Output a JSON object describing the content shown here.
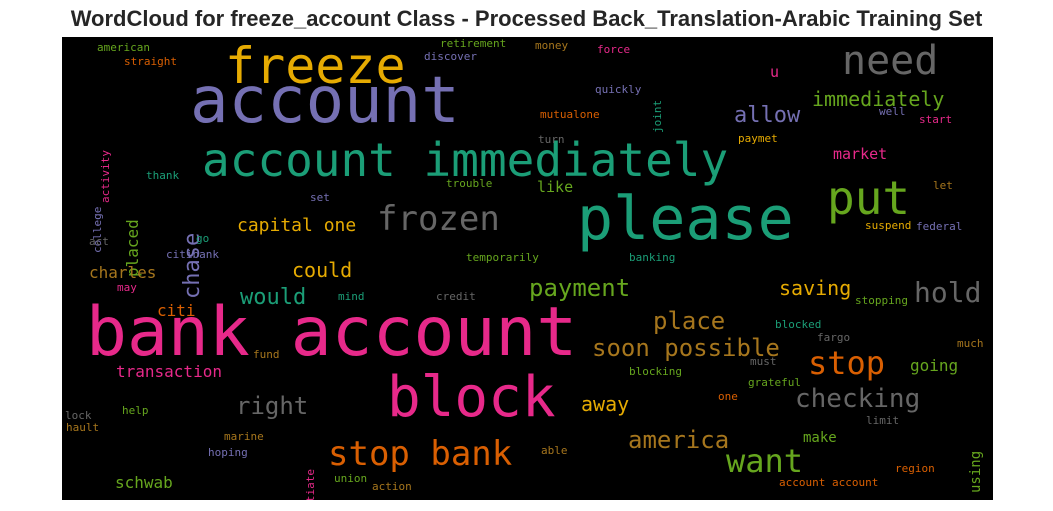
{
  "title": "WordCloud for freeze_account Class - Processed Back_Translation-Arabic Training Set",
  "colors": {
    "pink": "#e7298a",
    "purple": "#7570b3",
    "teal": "#1b9e77",
    "green": "#66a61e",
    "orange": "#d95f02",
    "gold": "#e6ab02",
    "brown": "#a6761d",
    "gray": "#666666"
  },
  "words": [
    {
      "text": "bank account",
      "color": "pink"
    },
    {
      "text": "account",
      "color": "purple"
    },
    {
      "text": "please",
      "color": "teal"
    },
    {
      "text": "block",
      "color": "pink"
    },
    {
      "text": "freeze",
      "color": "gold"
    },
    {
      "text": "account immediately",
      "color": "teal"
    },
    {
      "text": "need",
      "color": "gray"
    },
    {
      "text": "put",
      "color": "green"
    },
    {
      "text": "frozen",
      "color": "gray"
    },
    {
      "text": "stop bank",
      "color": "orange"
    },
    {
      "text": "want",
      "color": "green"
    },
    {
      "text": "stop",
      "color": "orange"
    },
    {
      "text": "checking",
      "color": "gray"
    },
    {
      "text": "hold",
      "color": "gray"
    },
    {
      "text": "america",
      "color": "brown"
    },
    {
      "text": "soon possible",
      "color": "brown"
    },
    {
      "text": "place",
      "color": "brown"
    },
    {
      "text": "right",
      "color": "gray"
    },
    {
      "text": "payment",
      "color": "green"
    },
    {
      "text": "allow",
      "color": "purple"
    },
    {
      "text": "immediately",
      "color": "green"
    },
    {
      "text": "chase",
      "color": "purple"
    },
    {
      "text": "would",
      "color": "teal"
    },
    {
      "text": "saving",
      "color": "gold"
    },
    {
      "text": "could",
      "color": "gold"
    },
    {
      "text": "away",
      "color": "gold"
    },
    {
      "text": "capital one",
      "color": "gold"
    },
    {
      "text": "placed",
      "color": "green"
    },
    {
      "text": "transaction",
      "color": "pink"
    },
    {
      "text": "charles",
      "color": "brown"
    },
    {
      "text": "citi",
      "color": "orange"
    },
    {
      "text": "market",
      "color": "pink"
    },
    {
      "text": "like",
      "color": "green"
    },
    {
      "text": "make",
      "color": "green"
    },
    {
      "text": "going",
      "color": "green"
    },
    {
      "text": "schwab",
      "color": "green"
    },
    {
      "text": "using",
      "color": "green"
    },
    {
      "text": "u",
      "color": "pink"
    },
    {
      "text": "american",
      "color": "green"
    },
    {
      "text": "straight",
      "color": "orange"
    },
    {
      "text": "retirement",
      "color": "green"
    },
    {
      "text": "discover",
      "color": "purple"
    },
    {
      "text": "money",
      "color": "brown"
    },
    {
      "text": "force",
      "color": "pink"
    },
    {
      "text": "quickly",
      "color": "purple"
    },
    {
      "text": "joint",
      "color": "teal"
    },
    {
      "text": "activity",
      "color": "pink"
    },
    {
      "text": "mutualone",
      "color": "orange"
    },
    {
      "text": "well",
      "color": "purple"
    },
    {
      "text": "start",
      "color": "pink"
    },
    {
      "text": "turn",
      "color": "gray"
    },
    {
      "text": "paymet",
      "color": "gold"
    },
    {
      "text": "college",
      "color": "purple"
    },
    {
      "text": "thank",
      "color": "teal"
    },
    {
      "text": "trouble",
      "color": "green"
    },
    {
      "text": "let",
      "color": "brown"
    },
    {
      "text": "set",
      "color": "purple"
    },
    {
      "text": "suspend",
      "color": "gold"
    },
    {
      "text": "federal",
      "color": "purple"
    },
    {
      "text": "act",
      "color": "gray"
    },
    {
      "text": "go",
      "color": "teal"
    },
    {
      "text": "citibank",
      "color": "purple"
    },
    {
      "text": "temporarily",
      "color": "green"
    },
    {
      "text": "banking",
      "color": "teal"
    },
    {
      "text": "may",
      "color": "pink"
    },
    {
      "text": "mind",
      "color": "teal"
    },
    {
      "text": "credit",
      "color": "gray"
    },
    {
      "text": "stopping",
      "color": "green"
    },
    {
      "text": "blocked",
      "color": "teal"
    },
    {
      "text": "fargo",
      "color": "gray"
    },
    {
      "text": "fund",
      "color": "brown"
    },
    {
      "text": "must",
      "color": "gray"
    },
    {
      "text": "much",
      "color": "brown"
    },
    {
      "text": "blocking",
      "color": "green"
    },
    {
      "text": "grateful",
      "color": "green"
    },
    {
      "text": "one",
      "color": "orange"
    },
    {
      "text": "lock",
      "color": "gray"
    },
    {
      "text": "help",
      "color": "green"
    },
    {
      "text": "hault",
      "color": "brown"
    },
    {
      "text": "limit",
      "color": "gray"
    },
    {
      "text": "initiate",
      "color": "pink"
    },
    {
      "text": "marine",
      "color": "brown"
    },
    {
      "text": "hoping",
      "color": "purple"
    },
    {
      "text": "able",
      "color": "brown"
    },
    {
      "text": "region",
      "color": "orange"
    },
    {
      "text": "union",
      "color": "green"
    },
    {
      "text": "action",
      "color": "brown"
    },
    {
      "text": "account account",
      "color": "orange"
    }
  ]
}
